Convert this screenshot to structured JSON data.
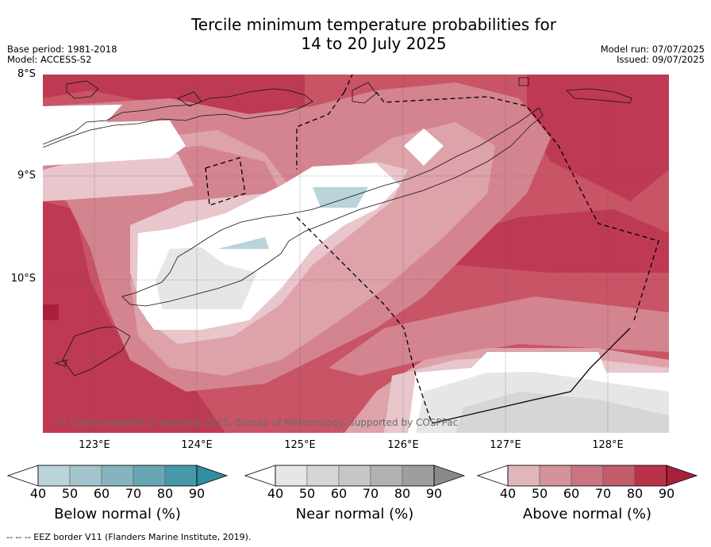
{
  "title": {
    "line1": "Tercile minimum temperature probabilities for",
    "line2": "14 to 20 July 2025"
  },
  "meta": {
    "base_period": "Base period: 1981-2018",
    "model": "Model: ACCESS-S2",
    "model_run": "Model run: 07/07/2025",
    "issued": "Issued: 09/07/2025"
  },
  "map": {
    "lat_labels": [
      "8°S",
      "9°S",
      "10°S"
    ],
    "lon_labels": [
      "123°E",
      "124°E",
      "125°E",
      "126°E",
      "127°E",
      "128°E"
    ],
    "copyright": "© Commonwealth of Australia 2025, Bureau of Meteorology, supported by COSPPac"
  },
  "colorbars": [
    {
      "label": "Below normal (%)",
      "ticks": [
        "40",
        "50",
        "60",
        "70",
        "80",
        "90"
      ],
      "colors": [
        "#ffffff",
        "#bbd3da",
        "#a3c4cc",
        "#86b4be",
        "#68a6b3",
        "#4599a9",
        "#2f8ea0"
      ]
    },
    {
      "label": "Near normal (%)",
      "ticks": [
        "40",
        "50",
        "60",
        "70",
        "80",
        "90"
      ],
      "colors": [
        "#ffffff",
        "#e6e6e6",
        "#d6d6d6",
        "#c6c6c6",
        "#b2b2b2",
        "#9e9e9e",
        "#8a8a8a"
      ]
    },
    {
      "label": "Above normal (%)",
      "ticks": [
        "40",
        "50",
        "60",
        "70",
        "80",
        "90"
      ],
      "colors": [
        "#ffffff",
        "#e0b6bc",
        "#d4929b",
        "#c9747f",
        "#c25c6a",
        "#b83249",
        "#a8203a"
      ]
    }
  ],
  "footnote": "--  --  -- EEZ border V11 (Flanders Marine Institute, 2019)."
}
